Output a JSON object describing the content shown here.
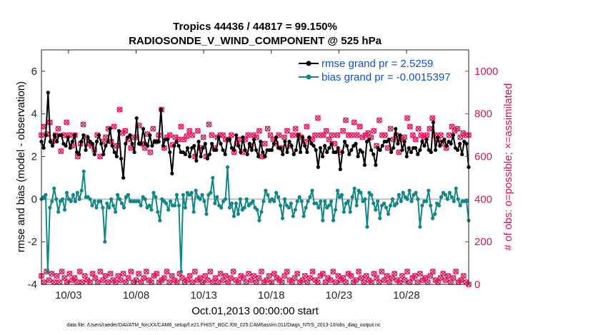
{
  "chart_data": {
    "type": "line",
    "title_line1": "Tropics 44436 / 44817 = 99.150%",
    "title_line2": "RADIOSONDE_V_WIND_COMPONENT @ 525 hPa",
    "xlabel": "Oct.01,2013 00:00:00 start",
    "ylabel_left": "rmse and bias (model - observation)",
    "ylabel_right": "# of obs: o=possible; ×=assimilated",
    "xlim": [
      1,
      32.6
    ],
    "ylim_left": [
      -4,
      7
    ],
    "ylim_right": [
      0,
      1100
    ],
    "x_ticks": [
      {
        "value": 3,
        "label": "10/03"
      },
      {
        "value": 8,
        "label": "10/08"
      },
      {
        "value": 13,
        "label": "10/13"
      },
      {
        "value": 18,
        "label": "10/18"
      },
      {
        "value": 23,
        "label": "10/23"
      },
      {
        "value": 28,
        "label": "10/28"
      }
    ],
    "y_ticks_left": [
      {
        "value": -4,
        "label": "-4"
      },
      {
        "value": -2,
        "label": "-2"
      },
      {
        "value": 0,
        "label": "0"
      },
      {
        "value": 2,
        "label": "2"
      },
      {
        "value": 4,
        "label": "4"
      },
      {
        "value": 6,
        "label": "6"
      }
    ],
    "y_ticks_right": [
      {
        "value": 0,
        "label": "0"
      },
      {
        "value": 200,
        "label": "200"
      },
      {
        "value": 400,
        "label": "400"
      },
      {
        "value": 600,
        "label": "600"
      },
      {
        "value": 800,
        "label": "800"
      },
      {
        "value": 1000,
        "label": "1000"
      }
    ],
    "zero_line": 0,
    "series": [
      {
        "name": "rmse grand pr = 2.5259",
        "axis": "left",
        "color": "#000000",
        "values": [
          2.7,
          2.4,
          3.0,
          5.0,
          2.7,
          2.5,
          3.0,
          2.7,
          3.0,
          3.0,
          2.6,
          2.5,
          2.9,
          2.4,
          2.7,
          3.0,
          2.2,
          2.1,
          2.7,
          3.0,
          2.3,
          2.9,
          2.7,
          2.6,
          2.1,
          2.7,
          3.0,
          2.6,
          2.1,
          2.5,
          2.7,
          3.3,
          2.5,
          2.2,
          2.0,
          3.2,
          1.9,
          1.0,
          2.6,
          2.9,
          3.0,
          2.6,
          2.2,
          3.8,
          2.6,
          2.6,
          3.3,
          2.6,
          2.5,
          3.0,
          2.5,
          2.7,
          2.7,
          2.7,
          4.2,
          2.5,
          2.8,
          2.8,
          2.2,
          1.2,
          2.5,
          2.7,
          2.5,
          2.2,
          2.2,
          2.1,
          2.4,
          2.0,
          2.4,
          2.5,
          1.8,
          2.7,
          2.0,
          2.4,
          2.6,
          1.9,
          2.1,
          2.6,
          2.3,
          2.3,
          2.9,
          2.6,
          2.3,
          2.1,
          2.8,
          2.8,
          2.4,
          2.3,
          3.0,
          2.5,
          2.2,
          2.9,
          2.3,
          2.1,
          2.6,
          2.3,
          2.8,
          2.3,
          2.0,
          2.7,
          2.2,
          2.0,
          2.3,
          2.3,
          2.3,
          2.6,
          2.9,
          2.4,
          2.4,
          2.1,
          2.7,
          2.2,
          2.7,
          2.5,
          2.1,
          2.3,
          3.0,
          2.2,
          2.9,
          2.5,
          2.2,
          2.9,
          2.6,
          2.5,
          2.3,
          1.5,
          2.4,
          2.0,
          2.5,
          2.2,
          2.4,
          2.6,
          2.2,
          2.2,
          2.4,
          1.4,
          2.2,
          2.7,
          2.5,
          2.1,
          2.3,
          2.5,
          2.6,
          2.0,
          2.3,
          2.2,
          1.6,
          2.7,
          2.8,
          2.3,
          2.1,
          1.6,
          2.4,
          2.3,
          2.5,
          2.7,
          2.7,
          2.8,
          2.2,
          2.4,
          3.3,
          2.6,
          3.0,
          2.3,
          2.7,
          2.0,
          2.4,
          2.2,
          2.4,
          2.4,
          2.1,
          2.3,
          2.7,
          2.5,
          2.8,
          2.3,
          2.2,
          3.6,
          2.3,
          2.9,
          2.5,
          2.7,
          2.8,
          2.5,
          2.7,
          2.6,
          3.0,
          2.4,
          2.3,
          2.6,
          2.1,
          2.7,
          2.6,
          1.5
        ]
      },
      {
        "name": "bias grand pr = -0.0015397",
        "axis": "left",
        "color": "#108784",
        "values": [
          0.0,
          0.1,
          0.2,
          -3.4,
          -0.4,
          -0.1,
          0.5,
          0.0,
          -0.6,
          -0.1,
          0.0,
          -0.5,
          0.3,
          0.0,
          -0.1,
          0.2,
          -0.1,
          0.3,
          0.0,
          0.4,
          1.3,
          0.1,
          0.1,
          0.0,
          -0.3,
          -0.1,
          -0.4,
          -0.1,
          -0.1,
          -0.4,
          -2.0,
          -0.2,
          -0.4,
          0.0,
          -0.3,
          -0.6,
          0.2,
          0.0,
          -0.2,
          -0.4,
          0.1,
          0.2,
          -0.1,
          -0.1,
          -0.1,
          -0.1,
          -0.1,
          -0.3,
          0.1,
          0.0,
          -0.4,
          -0.3,
          -0.5,
          0.3,
          0.1,
          -0.6,
          -1.0,
          0.0,
          -0.1,
          -0.2,
          -0.5,
          -0.1,
          -0.3,
          -0.3,
          0.2,
          -0.3,
          -3.4,
          0.2,
          -0.4,
          0.3,
          0.2,
          0.3,
          -0.6,
          0.4,
          0.1,
          0.0,
          0.2,
          -0.1,
          -0.7,
          0.2,
          0.3,
          1.0,
          -0.2,
          0.1,
          -0.3,
          -0.4,
          -0.1,
          0.0,
          1.5,
          -0.4,
          -0.2,
          -0.8,
          -0.2,
          -0.7,
          0.0,
          -0.5,
          -0.4,
          0.0,
          -0.3,
          -0.2,
          -0.1,
          -0.4,
          -0.5,
          -1.0,
          -0.6,
          -0.1,
          0.4,
          0.2,
          -0.1,
          0.0,
          -0.1,
          0.3,
          0.1,
          -0.3,
          -0.9,
          0.0,
          -0.3,
          -0.4,
          -0.2,
          -0.8,
          -0.5,
          -0.1,
          0.1,
          -0.1,
          -0.8,
          -0.4,
          -0.1,
          0.1,
          0.4,
          -0.2,
          -0.2,
          -0.4,
          -0.1,
          -1.0,
          -0.1,
          -0.4,
          -0.3,
          -0.1,
          -1.0,
          -0.5,
          0.4,
          0.1,
          0.2,
          -0.6,
          -0.2,
          -0.1,
          -0.6,
          0.1,
          0.5,
          -0.3,
          0.4,
          0.3,
          -0.1,
          0.0,
          -1.3,
          0.3,
          0.2,
          -0.2,
          -0.5,
          -0.1,
          -0.9,
          -0.3,
          -0.2,
          -0.4,
          -0.7,
          -0.3,
          0.0,
          -0.3,
          -0.2,
          0.2,
          -0.1,
          0.3,
          0.1,
          0.0,
          0.4,
          -0.1,
          0.2,
          0.3,
          0.0,
          -1.3,
          -0.3,
          -0.1,
          -0.1,
          0.4,
          -0.3,
          -0.9,
          -0.7,
          -0.2,
          -0.3,
          0.1,
          0.3,
          0.2,
          0.0,
          0.3,
          0.1,
          -0.1,
          0.5,
          0.0,
          -0.3,
          -0.1,
          -0.1,
          -0.1,
          -1.0
        ]
      }
    ],
    "obs_series": [
      {
        "name": "possible",
        "axis": "right",
        "color": "#e0175c",
        "values": [
          700,
          740,
          705,
          760,
          670,
          700,
          730,
          625,
          700,
          760,
          700,
          650,
          700,
          600,
          660,
          750,
          690,
          660,
          650,
          630,
          700,
          600,
          670,
          690,
          730,
          670,
          740,
          650,
          820,
          710,
          720,
          680,
          640,
          690,
          690,
          745,
          660,
          640,
          705,
          620,
          730,
          670,
          700,
          820,
          640,
          690,
          700,
          655,
          690,
          680,
          740,
          680,
          695,
          720,
          700,
          600,
          720,
          640,
          690,
          600,
          750,
          700,
          640,
          690,
          700,
          700,
          680,
          680,
          700,
          620,
          660,
          680,
          620,
          680,
          700,
          650,
          700,
          690,
          720,
          600,
          660,
          730,
          700,
          680,
          660,
          700,
          640,
          690,
          720,
          650,
          700,
          730,
          700,
          690,
          670,
          740,
          680,
          680,
          700,
          780,
          700,
          700,
          720,
          680,
          700,
          660,
          700,
          620,
          720,
          770,
          700,
          700,
          760,
          700,
          740,
          690,
          700,
          710,
          690,
          720,
          650,
          770,
          700,
          700,
          640,
          730,
          680,
          700,
          620,
          680,
          690,
          780,
          740,
          700,
          680,
          730,
          700,
          690,
          700,
          730,
          780,
          700,
          680,
          700,
          660,
          640,
          700,
          740,
          720,
          730,
          690,
          710,
          700,
          700
        ]
      },
      {
        "name": "assimilated",
        "axis": "right",
        "color": "#e0175c",
        "values": [
          40,
          10,
          60,
          20,
          50,
          10,
          40,
          10,
          60,
          30,
          10,
          50,
          20,
          30,
          10,
          60,
          10,
          40,
          20,
          10,
          50,
          30,
          10,
          60,
          20,
          40,
          10,
          50,
          20,
          10,
          40,
          20,
          50,
          10,
          30,
          60,
          10,
          20,
          50,
          10,
          30,
          60,
          20,
          10,
          40,
          50,
          10,
          20,
          30,
          60,
          10,
          40,
          20,
          10,
          50,
          30,
          10,
          20,
          40,
          10,
          60,
          20,
          30,
          10,
          40,
          20,
          60,
          10,
          30,
          10,
          50,
          20,
          40,
          10,
          30,
          60,
          20,
          10,
          40,
          30,
          10,
          50,
          20,
          40,
          10,
          30,
          60,
          10,
          20,
          40,
          10,
          50,
          30,
          20,
          10,
          40,
          60,
          20,
          10,
          30,
          50,
          10,
          20,
          40,
          10,
          30,
          60,
          20,
          10,
          40,
          50,
          10,
          30,
          20,
          60,
          10,
          40,
          20,
          30,
          10,
          50,
          40,
          10,
          20,
          60,
          30,
          10,
          40,
          20,
          10,
          50,
          30,
          10,
          60,
          20,
          40,
          10,
          30,
          50,
          20,
          10,
          40,
          20,
          60,
          10,
          30,
          40,
          10,
          50,
          20,
          30,
          10,
          40,
          60,
          20,
          10,
          30,
          50,
          20,
          40,
          10,
          30,
          60,
          10,
          20,
          40,
          10,
          0
        ]
      }
    ],
    "legend_position": "top-right",
    "footer": "data file: /Users/raeder/DAI/ATM_forcXX/CAM6_setup/f.e21.FHIST_BGC.f09_025.CAM6assim.011/Diags_NTrS_2013-10/obs_diag_output.nc"
  }
}
